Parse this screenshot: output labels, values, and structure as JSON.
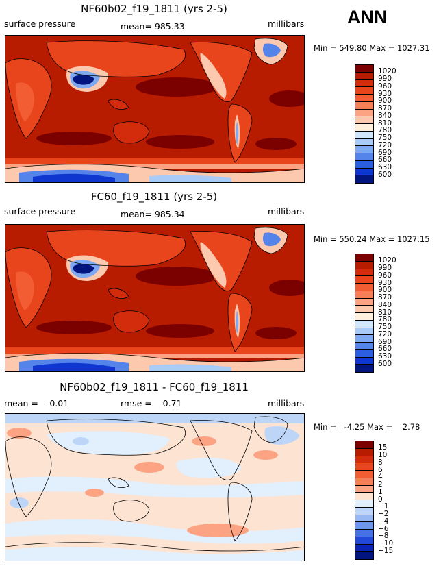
{
  "season": "ANN",
  "panels": [
    {
      "title": "NF60b02_f19_1811 (yrs 2-5)",
      "left_label": "surface pressure",
      "center_label": "mean= 985.33",
      "units": "millibars",
      "minmax": "Min = 549.80 Max = 1027.31",
      "legend": {
        "labels": [
          "1020",
          "990",
          "960",
          "930",
          "900",
          "870",
          "840",
          "810",
          "780",
          "750",
          "720",
          "690",
          "660",
          "630",
          "600"
        ],
        "colors": [
          "#7b0000",
          "#b71c00",
          "#d32c0c",
          "#e8451d",
          "#f25d33",
          "#f77f58",
          "#fba383",
          "#fcc8ae",
          "#fef0dc",
          "#d2e6fb",
          "#a9cbf7",
          "#7ea8f1",
          "#5484ea",
          "#2b5ee1",
          "#0f37d0",
          "#02147e"
        ]
      }
    },
    {
      "title": "FC60_f19_1811 (yrs 2-5)",
      "left_label": "surface pressure",
      "center_label": "mean= 985.34",
      "units": "millibars",
      "minmax": "Min = 550.24 Max = 1027.15",
      "legend": {
        "labels": [
          "1020",
          "990",
          "960",
          "930",
          "900",
          "870",
          "840",
          "810",
          "780",
          "750",
          "720",
          "690",
          "660",
          "630",
          "600"
        ],
        "colors": [
          "#7b0000",
          "#b71c00",
          "#d32c0c",
          "#e8451d",
          "#f25d33",
          "#f77f58",
          "#fba383",
          "#fcc8ae",
          "#fef0dc",
          "#d2e6fb",
          "#a9cbf7",
          "#7ea8f1",
          "#5484ea",
          "#2b5ee1",
          "#0f37d0",
          "#02147e"
        ]
      }
    },
    {
      "title": "NF60b02_f19_1811 - FC60_f19_1811",
      "left_label": "mean =   -0.01",
      "center_label": "rmse =    0.71",
      "units": "millibars",
      "minmax": "Min =   -4.25 Max =    2.78",
      "legend": {
        "labels": [
          "15",
          "10",
          "8",
          "6",
          "4",
          "2",
          "1",
          "0",
          "−1",
          "−2",
          "−4",
          "−6",
          "−8",
          "−10",
          "−15"
        ],
        "colors": [
          "#7b0000",
          "#b71c00",
          "#d32c0c",
          "#e8451d",
          "#f25d33",
          "#f77f58",
          "#fba383",
          "#fde3d2",
          "#e2effd",
          "#bdd6f8",
          "#97b8f3",
          "#6e96ec",
          "#4571e4",
          "#2148d8",
          "#0a23b4",
          "#02147e"
        ]
      }
    }
  ]
}
